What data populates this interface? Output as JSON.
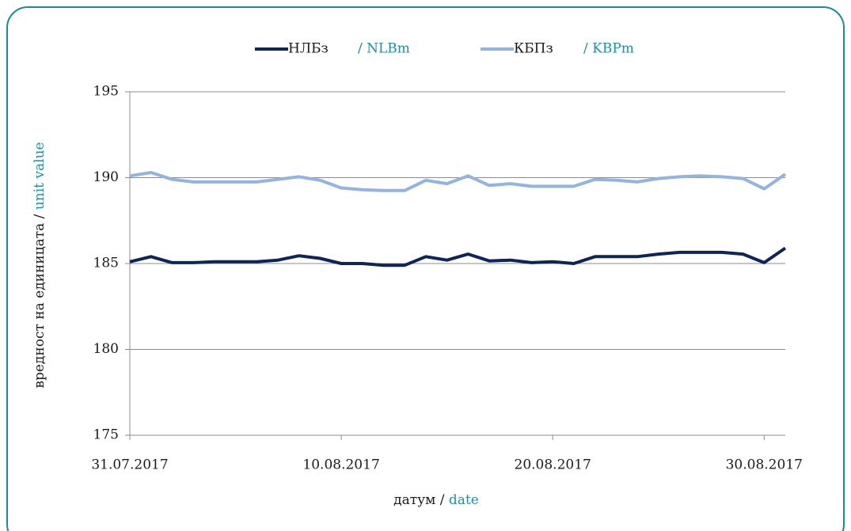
{
  "chart_data": {
    "type": "line",
    "x_label": [
      "датум /",
      "date"
    ],
    "y_label": [
      "вредност на единицата /",
      "unit value"
    ],
    "x": [
      "2017-07-31",
      "2017-08-01",
      "2017-08-02",
      "2017-08-03",
      "2017-08-04",
      "2017-08-05",
      "2017-08-06",
      "2017-08-07",
      "2017-08-08",
      "2017-08-09",
      "2017-08-10",
      "2017-08-11",
      "2017-08-12",
      "2017-08-13",
      "2017-08-14",
      "2017-08-15",
      "2017-08-16",
      "2017-08-17",
      "2017-08-18",
      "2017-08-19",
      "2017-08-20",
      "2017-08-21",
      "2017-08-22",
      "2017-08-23",
      "2017-08-24",
      "2017-08-25",
      "2017-08-26",
      "2017-08-27",
      "2017-08-28",
      "2017-08-29",
      "2017-08-30",
      "2017-08-31"
    ],
    "series": [
      {
        "name": "НЛБз",
        "name_en": "/ NLBm",
        "color": "#0f2557",
        "values": [
          185.1,
          185.4,
          185.05,
          185.05,
          185.1,
          185.1,
          185.1,
          185.2,
          185.45,
          185.3,
          185.0,
          185.0,
          184.9,
          184.9,
          185.4,
          185.2,
          185.55,
          185.15,
          185.2,
          185.05,
          185.1,
          185.0,
          185.4,
          185.4,
          185.4,
          185.55,
          185.65,
          185.65,
          185.65,
          185.55,
          185.05,
          185.9
        ]
      },
      {
        "name": "КБПз",
        "name_en": "/ KBPm",
        "color": "#93b3e0",
        "values": [
          190.1,
          190.3,
          189.9,
          189.75,
          189.75,
          189.75,
          189.75,
          189.9,
          190.05,
          189.85,
          189.4,
          189.3,
          189.25,
          189.25,
          189.85,
          189.65,
          190.1,
          189.55,
          189.65,
          189.5,
          189.5,
          189.5,
          189.9,
          189.85,
          189.75,
          189.95,
          190.05,
          190.1,
          190.05,
          189.95,
          189.35,
          190.2
        ]
      }
    ],
    "xlim": [
      "2017-07-31",
      "2017-08-31"
    ],
    "xticks": [
      {
        "value": "2017-07-31",
        "label": "31.07.2017"
      },
      {
        "value": "2017-08-10",
        "label": "10.08.2017"
      },
      {
        "value": "2017-08-20",
        "label": "20.08.2017"
      },
      {
        "value": "2017-08-30",
        "label": "30.08.2017"
      }
    ],
    "ylim": [
      175,
      195
    ],
    "yticks": [
      175,
      180,
      185,
      190,
      195
    ],
    "grid": true,
    "legend": "top"
  }
}
